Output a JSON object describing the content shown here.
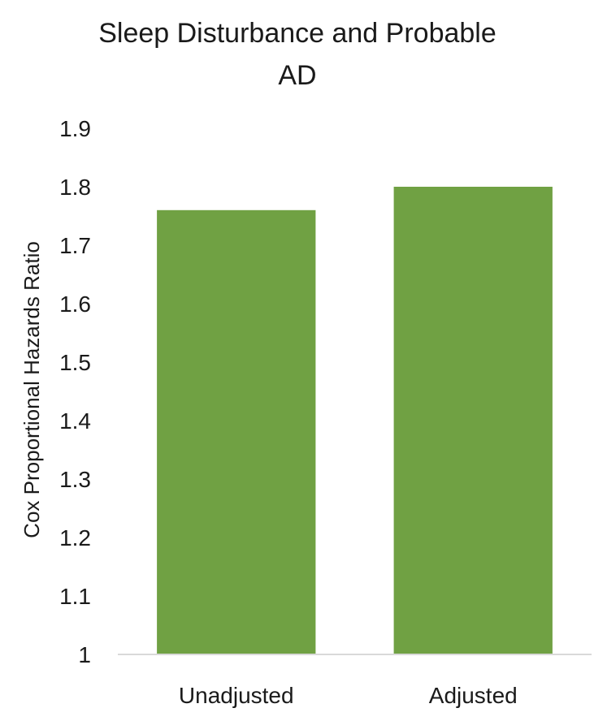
{
  "chart_data": {
    "type": "bar",
    "title_lines": [
      "Sleep Disturbance and Probable",
      "AD"
    ],
    "ylabel": "Cox Proportional Hazards Ratio",
    "xlabel": "",
    "categories": [
      "Unadjusted",
      "Adjusted"
    ],
    "values": [
      1.76,
      1.8
    ],
    "ylim": [
      1,
      1.9
    ],
    "yticks": [
      "1",
      "1.1",
      "1.2",
      "1.3",
      "1.4",
      "1.5",
      "1.6",
      "1.7",
      "1.8",
      "1.9"
    ],
    "bar_color": "#70a143",
    "axis_color": "#d9d9d9",
    "grid": false,
    "legend": "none"
  }
}
